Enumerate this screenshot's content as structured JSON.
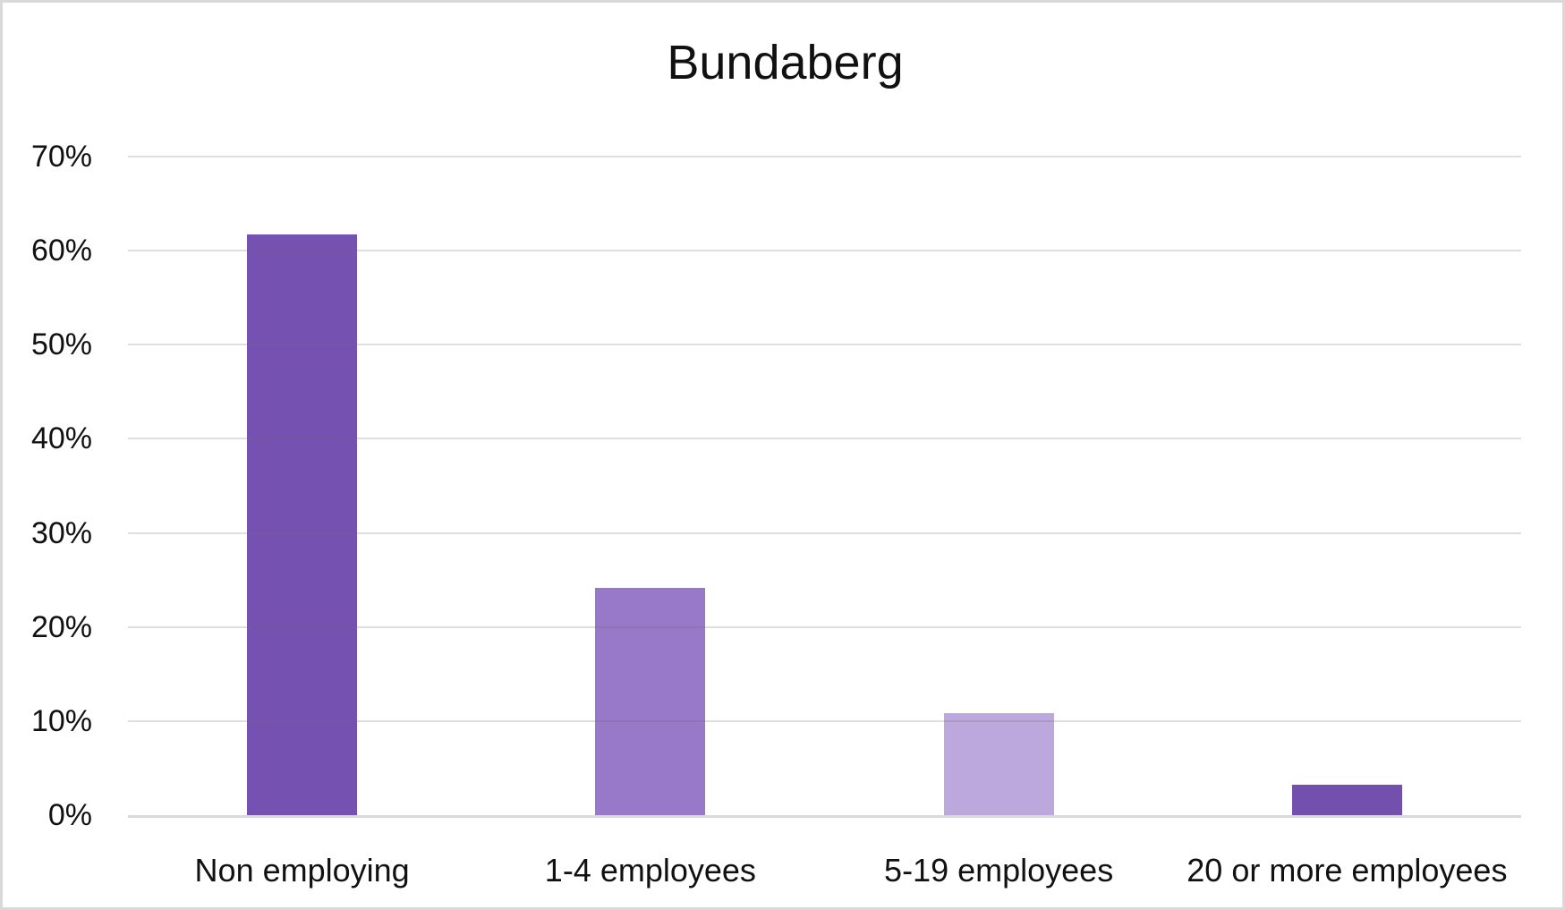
{
  "chart_data": {
    "type": "bar",
    "title": "Bundaberg",
    "categories": [
      "Non employing",
      "1-4 employees",
      "5-19 employees",
      "20 or more employees"
    ],
    "values": [
      61.7,
      24.2,
      10.8,
      3.2
    ],
    "unit": "%",
    "bar_colors": [
      "#7552B1",
      "#9879C9",
      "#BCA8DC",
      "#7450AE"
    ],
    "ylim": [
      0,
      70
    ],
    "ytick_step": 10,
    "ytick_labels": [
      "0%",
      "10%",
      "20%",
      "30%",
      "40%",
      "50%",
      "60%",
      "70%"
    ],
    "xlabel": "",
    "ylabel": "",
    "grid": true,
    "legend": false,
    "colors": {
      "gridline": "#DEDEDE",
      "axis_line": "#D9D9D9",
      "frame_border": "#D9D9D9",
      "text": "#111111",
      "background": "#FFFFFF"
    }
  }
}
